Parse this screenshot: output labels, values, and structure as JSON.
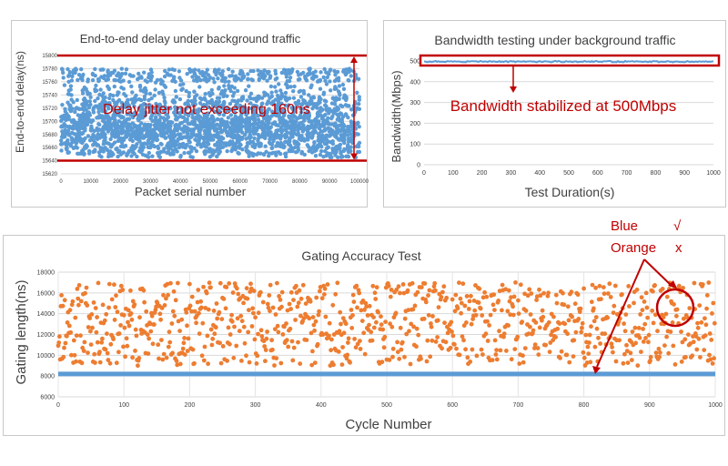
{
  "chart_data": [
    {
      "type": "scatter",
      "title": "End-to-end delay under background traffic",
      "xlabel": "Packet serial number",
      "ylabel": "End-to-end delay(ns)",
      "xlim": [
        0,
        100000
      ],
      "ylim": [
        15620,
        15800
      ],
      "xticks": [
        "0",
        "10000",
        "20000",
        "30000",
        "40000",
        "50000",
        "60000",
        "70000",
        "80000",
        "90000",
        "100000"
      ],
      "yticks": [
        "15620",
        "15640",
        "15660",
        "15680",
        "15700",
        "15720",
        "15740",
        "15760",
        "15780",
        "15800"
      ],
      "grid": true,
      "series": [
        {
          "color": "#5b9bd5",
          "y_min": 15645,
          "y_max": 15780,
          "count": 100000
        }
      ],
      "annotation": "Delay jitter not exceeding 160ns",
      "annotation_lines_y": [
        15640,
        15800
      ],
      "annotation_color": "#c00000"
    },
    {
      "type": "line",
      "title": "Bandwidth testing under background traffic",
      "xlabel": "Test Duration(s)",
      "ylabel": "Bandwidth(Mbps)",
      "xlim": [
        0,
        1000
      ],
      "ylim": [
        0,
        500
      ],
      "xticks": [
        "0",
        "100",
        "200",
        "300",
        "400",
        "500",
        "600",
        "700",
        "800",
        "900",
        "1000"
      ],
      "yticks": [
        "0",
        "100",
        "200",
        "300",
        "400",
        "500"
      ],
      "grid": true,
      "series": [
        {
          "color": "#5b9bd5",
          "x": [
            0,
            1000
          ],
          "y": [
            500,
            500
          ]
        }
      ],
      "annotation": "Bandwidth stabilized at 500Mbps",
      "annotation_color": "#c00000"
    },
    {
      "type": "scatter",
      "title": "Gating Accuracy Test",
      "xlabel": "Cycle Number",
      "ylabel": "Gating length(ns)",
      "xlim": [
        0,
        1000
      ],
      "ylim": [
        6000,
        18000
      ],
      "xticks": [
        "0",
        "100",
        "200",
        "300",
        "400",
        "500",
        "600",
        "700",
        "800",
        "900",
        "1000"
      ],
      "yticks": [
        "6000",
        "8000",
        "10000",
        "12000",
        "14000",
        "16000",
        "18000"
      ],
      "grid": true,
      "series": [
        {
          "color": "#5b9bd5",
          "x": [
            0,
            1000
          ],
          "y": [
            8200,
            8200
          ]
        },
        {
          "color": "#ed7d31",
          "y_min": 9000,
          "y_max": 17000,
          "count": 1000
        }
      ],
      "legend_note": [
        {
          "label": "Blue",
          "mark": "√"
        },
        {
          "label": "Orange",
          "mark": "x"
        }
      ],
      "annotation_color": "#c00000"
    }
  ]
}
